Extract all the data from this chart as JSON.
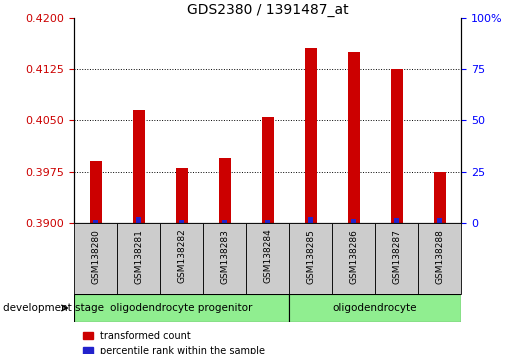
{
  "title": "GDS2380 / 1391487_at",
  "samples": [
    "GSM138280",
    "GSM138281",
    "GSM138282",
    "GSM138283",
    "GSM138284",
    "GSM138285",
    "GSM138286",
    "GSM138287",
    "GSM138288"
  ],
  "transformed_count": [
    0.399,
    0.4065,
    0.398,
    0.3995,
    0.4055,
    0.4155,
    0.415,
    0.4125,
    0.3975
  ],
  "percentile_rank": [
    1.5,
    3.0,
    1.5,
    1.5,
    1.5,
    3.0,
    2.0,
    2.5,
    2.5
  ],
  "ylim_left": [
    0.39,
    0.42
  ],
  "ylim_right": [
    0,
    100
  ],
  "yticks_left": [
    0.39,
    0.3975,
    0.405,
    0.4125,
    0.42
  ],
  "yticks_right": [
    0,
    25,
    50,
    75,
    100
  ],
  "bar_color_red": "#cc0000",
  "bar_color_blue": "#2222cc",
  "base_value": 0.39,
  "groups": [
    {
      "label": "oligodendrocyte progenitor",
      "n_samples": 5,
      "color": "#90ee90"
    },
    {
      "label": "oligodendrocyte",
      "n_samples": 4,
      "color": "#90ee90"
    }
  ],
  "legend_red": "transformed count",
  "legend_blue": "percentile rank within the sample",
  "dev_stage_label": "development stage",
  "background_color": "#ffffff",
  "tick_label_area_color": "#cccccc"
}
